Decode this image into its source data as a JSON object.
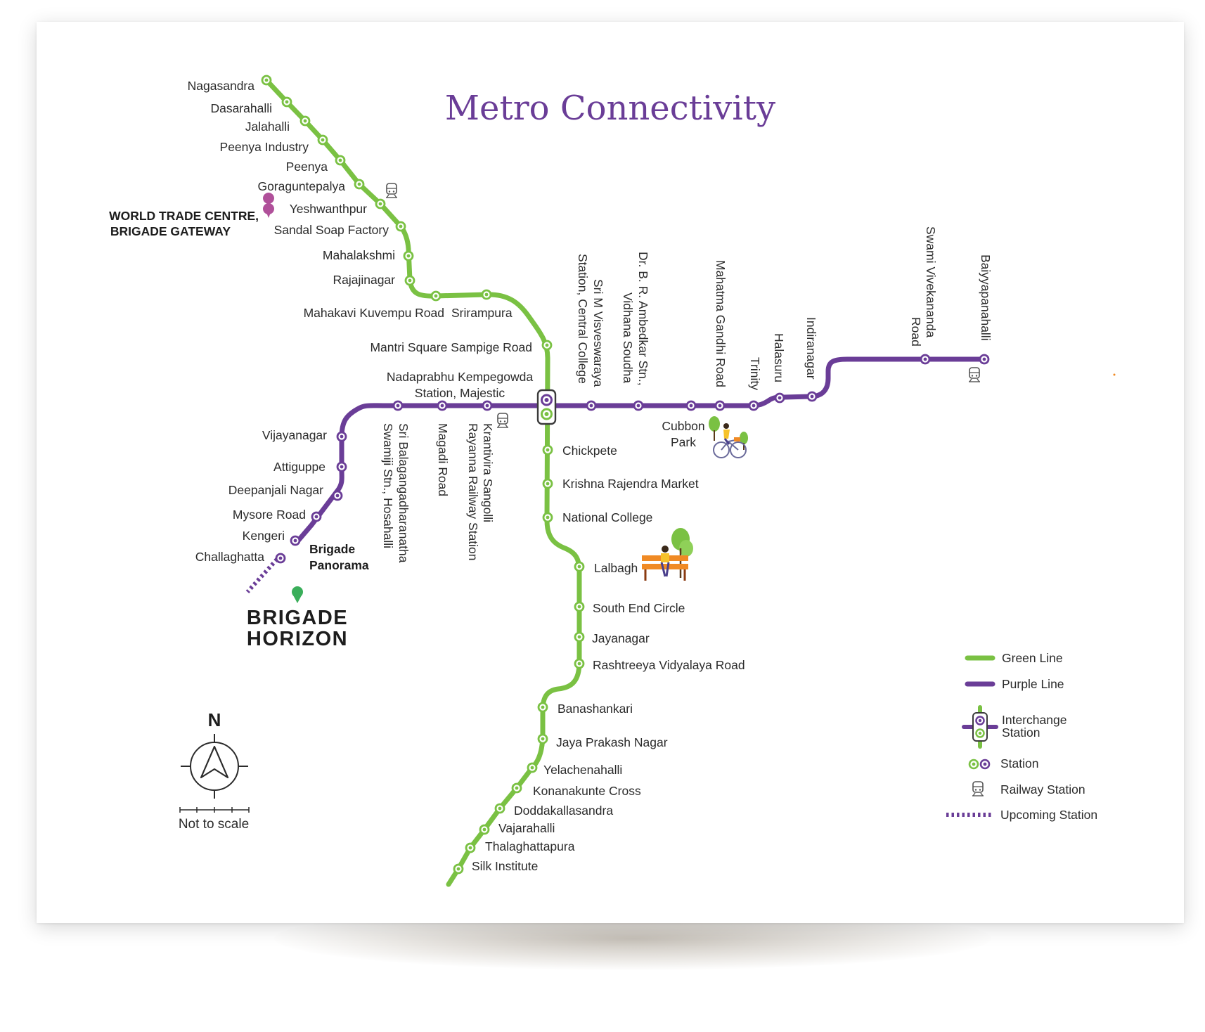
{
  "title": "Metro Connectivity",
  "colors": {
    "green_line": "#7ac143",
    "purple_line": "#6a3d97",
    "title": "#6a3d97",
    "text": "#2b2b2b",
    "pin_pink": "#b0509a",
    "pin_green": "#3aae5a",
    "orange": "#f08a24"
  },
  "green_line": {
    "name": "Green Line",
    "stations": [
      "Nagasandra",
      "Dasarahalli",
      "Jalahalli",
      "Peenya Industry",
      "Peenya",
      "Goraguntepalya",
      "Yeshwanthpur",
      "Sandal Soap Factory",
      "Mahalakshmi",
      "Rajajinagar",
      "Mahakavi Kuvempu Road",
      "Srirampura",
      "Mantri Square Sampige Road",
      "Chickpete",
      "Krishna Rajendra Market",
      "National College",
      "Lalbagh",
      "South End Circle",
      "Jayanagar",
      "Rashtreeya Vidyalaya Road",
      "Banashankari",
      "Jaya Prakash Nagar",
      "Yelachenahalli",
      "Konanakunte Cross",
      "Doddakallasandra",
      "Vajarahalli",
      "Thalaghattapura",
      "Silk Institute"
    ]
  },
  "purple_line": {
    "name": "Purple Line",
    "stations": [
      "Challaghatta",
      "Kengeri",
      "Mysore Road",
      "Deepanjali Nagar",
      "Attiguppe",
      "Vijayanagar",
      "Sri Balagangadharanatha Swamiji Stn., Hosahalli",
      "Magadi Road",
      "Krantivira Sangolli Rayanna Railway Station",
      "Sri M Visveswaraya Station, Central College",
      "Dr. B. R. Ambedkar Stn., Vidhana Soudha",
      "Cubbon Park",
      "Mahatma Gandhi Road",
      "Trinity",
      "Halasuru",
      "Indiranagar",
      "Swami Vivekananda Road",
      "Baiyyapanahalli"
    ]
  },
  "interchange": {
    "line1": "Nadaprabhu Kempegowda",
    "line2": "Station, Majestic"
  },
  "labels": {
    "nagasandra": "Nagasandra",
    "dasarahalli": "Dasarahalli",
    "jalahalli": "Jalahalli",
    "peenya_industry": "Peenya Industry",
    "peenya": "Peenya",
    "goraguntepalya": "Goraguntepalya",
    "yeshwanthpur": "Yeshwanthpur",
    "sandal_soap": "Sandal Soap Factory",
    "mahalakshmi": "Mahalakshmi",
    "rajajinagar": "Rajajinagar",
    "kuvempu": "Mahakavi Kuvempu Road",
    "srirampura": "Srirampura",
    "mantri": "Mantri Square Sampige Road",
    "chickpete": "Chickpete",
    "kr_market": "Krishna Rajendra Market",
    "national_college": "National College",
    "lalbagh": "Lalbagh",
    "south_end": "South End Circle",
    "jayanagar": "Jayanagar",
    "rv_road": "Rashtreeya Vidyalaya Road",
    "banashankari": "Banashankari",
    "jp_nagar": "Jaya Prakash Nagar",
    "yelachenahalli": "Yelachenahalli",
    "konanakunte": "Konanakunte Cross",
    "doddakallasandra": "Doddakallasandra",
    "vajarahalli": "Vajarahalli",
    "thalaghattapura": "Thalaghattapura",
    "silk_institute": "Silk Institute",
    "vijayanagar": "Vijayanagar",
    "attiguppe": "Attiguppe",
    "deepanjali": "Deepanjali Nagar",
    "mysore_road": "Mysore Road",
    "kengeri": "Kengeri",
    "challaghatta": "Challaghatta",
    "hosahalli_1": "Sri Balagangadharanatha",
    "hosahalli_2": "Swamiji Stn., Hosahalli",
    "magadi": "Magadi Road",
    "krantivira_1": "Krantivira Sangolli",
    "krantivira_2": "Rayanna Railway Station",
    "visveswaraya_1": "Sri M Visveswaraya",
    "visveswaraya_2": "Station, Central College",
    "ambedkar_1": "Dr. B. R. Ambedkar Stn.,",
    "ambedkar_2": "Vidhana Soudha",
    "mg_road": "Mahatma Gandhi Road",
    "trinity": "Trinity",
    "halasuru": "Halasuru",
    "indiranagar": "Indiranagar",
    "sv_road_1": "Swami Vivekananda",
    "sv_road_2": "Road",
    "baiyyappanahalli": "Baiyyapanahalli",
    "cubbon_1": "Cubbon",
    "cubbon_2": "Park"
  },
  "landmarks": {
    "wtc_line1": "WORLD TRADE CENTRE,",
    "wtc_line2": "BRIGADE GATEWAY",
    "panorama_line1": "Brigade",
    "panorama_line2": "Panorama",
    "horizon_line1": "BRIGADE",
    "horizon_line2": "HORIZON"
  },
  "compass": {
    "north": "N",
    "note": "Not to scale"
  },
  "legend": {
    "green_line": "Green Line",
    "purple_line": "Purple Line",
    "interchange_1": "Interchange",
    "interchange_2": "Station",
    "station": "Station",
    "railway_station": "Railway Station",
    "upcoming_station": "Upcoming Station"
  }
}
